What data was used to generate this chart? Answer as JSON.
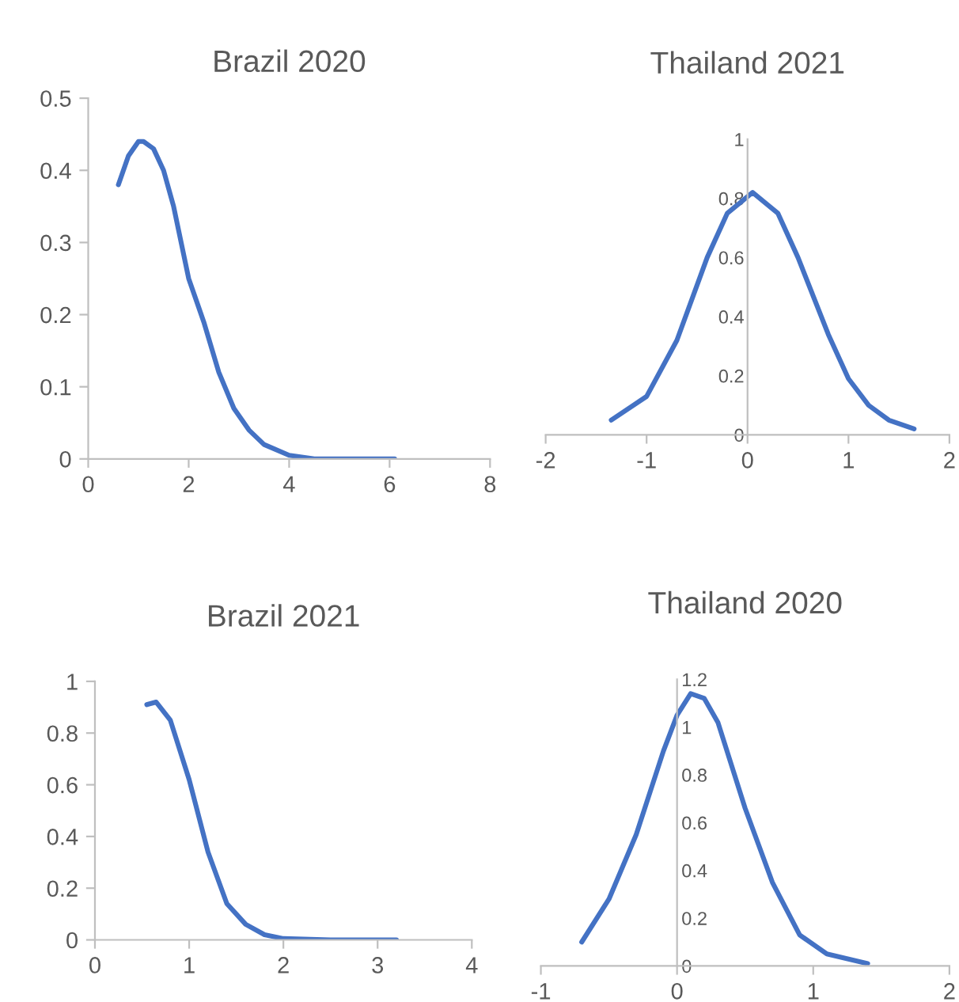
{
  "chart_data": [
    {
      "type": "line",
      "title": "Brazil 2020",
      "color": "#4472c4",
      "x": [
        0.6,
        0.8,
        1.0,
        1.1,
        1.3,
        1.5,
        1.7,
        2.0,
        2.3,
        2.6,
        2.9,
        3.2,
        3.5,
        4.0,
        4.5,
        5.0,
        6.1
      ],
      "values": [
        0.38,
        0.42,
        0.44,
        0.44,
        0.43,
        0.4,
        0.35,
        0.25,
        0.19,
        0.12,
        0.07,
        0.04,
        0.02,
        0.005,
        0,
        0,
        0
      ],
      "xlim": [
        0,
        8
      ],
      "ylim": [
        0,
        0.5
      ],
      "xticks": [
        0,
        2,
        4,
        6,
        8
      ],
      "yticks": [
        0,
        0.1,
        0.2,
        0.3,
        0.4,
        0.5
      ]
    },
    {
      "type": "line",
      "title": "Thailand 2021",
      "color": "#4472c4",
      "x": [
        -1.35,
        -1.0,
        -0.7,
        -0.4,
        -0.2,
        0.05,
        0.3,
        0.5,
        0.8,
        1.0,
        1.2,
        1.4,
        1.65
      ],
      "values": [
        0.05,
        0.13,
        0.32,
        0.6,
        0.75,
        0.82,
        0.75,
        0.6,
        0.34,
        0.19,
        0.1,
        0.05,
        0.02
      ],
      "xlim": [
        -2,
        2
      ],
      "ylim": [
        0,
        1
      ],
      "xticks": [
        -2,
        -1,
        0,
        1,
        2
      ],
      "yticks": [
        0,
        0.2,
        0.4,
        0.6,
        0.8,
        1
      ]
    },
    {
      "type": "line",
      "title": "Brazil 2021",
      "color": "#4472c4",
      "x": [
        0.55,
        0.65,
        0.8,
        1.0,
        1.2,
        1.4,
        1.6,
        1.8,
        2.0,
        2.5,
        3.2
      ],
      "values": [
        0.91,
        0.92,
        0.85,
        0.62,
        0.34,
        0.14,
        0.06,
        0.02,
        0.005,
        0,
        0
      ],
      "xlim": [
        0,
        4
      ],
      "ylim": [
        0,
        1
      ],
      "xticks": [
        0,
        1,
        2,
        3,
        4
      ],
      "yticks": [
        0,
        0.2,
        0.4,
        0.6,
        0.8,
        1
      ]
    },
    {
      "type": "line",
      "title": "Thailand 2020",
      "color": "#4472c4",
      "x": [
        -0.7,
        -0.5,
        -0.3,
        -0.1,
        0.0,
        0.1,
        0.2,
        0.3,
        0.5,
        0.7,
        0.9,
        1.1,
        1.4
      ],
      "values": [
        0.1,
        0.28,
        0.55,
        0.9,
        1.05,
        1.14,
        1.12,
        1.02,
        0.66,
        0.35,
        0.13,
        0.05,
        0.01
      ],
      "xlim": [
        -1,
        2
      ],
      "ylim": [
        0,
        1.2
      ],
      "xticks": [
        -1,
        0,
        1,
        2
      ],
      "yticks": [
        0,
        0.2,
        0.4,
        0.6,
        0.8,
        1,
        1.2
      ]
    }
  ]
}
